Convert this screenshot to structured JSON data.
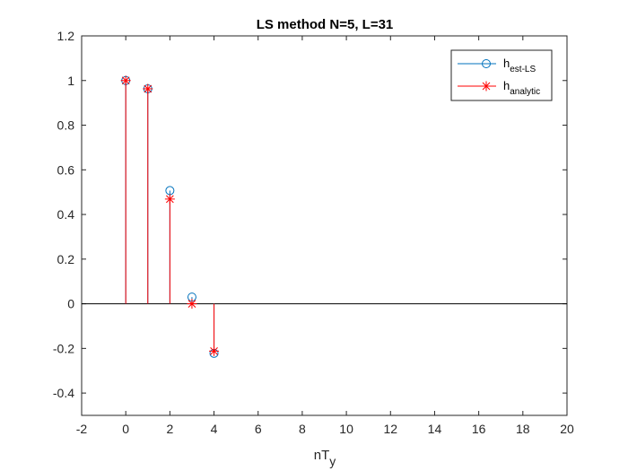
{
  "chart_data": {
    "type": "stem",
    "title": "LS method N=5, L=31",
    "xlabel_main": "nT",
    "xlabel_sub": "y",
    "ylabel": "",
    "xlim": [
      -2,
      20
    ],
    "ylim": [
      -0.5,
      1.2
    ],
    "xticks": [
      -2,
      0,
      2,
      4,
      6,
      8,
      10,
      12,
      14,
      16,
      18,
      20
    ],
    "xtick_labels": [
      "-2",
      "0",
      "2",
      "4",
      "6",
      "8",
      "10",
      "12",
      "14",
      "16",
      "18",
      "20"
    ],
    "yticks": [
      -0.4,
      -0.2,
      0,
      0.2,
      0.4,
      0.6,
      0.8,
      1,
      1.2
    ],
    "ytick_labels": [
      "-0.4",
      "-0.2",
      "0",
      "0.2",
      "0.4",
      "0.6",
      "0.8",
      "1",
      "1.2"
    ],
    "grid": false,
    "legend_position": "top-right",
    "series": [
      {
        "legend_main": "h",
        "legend_sub": "est-LS",
        "marker": "circle",
        "color": "#0072BD",
        "x": [
          0,
          1,
          2,
          3,
          4
        ],
        "values": [
          1.0,
          0.963,
          0.507,
          0.03,
          -0.222
        ]
      },
      {
        "legend_main": "h",
        "legend_sub": "analytic",
        "marker": "asterisk",
        "color": "#FF0000",
        "x": [
          0,
          1,
          2,
          3,
          4
        ],
        "values": [
          1.0,
          0.963,
          0.469,
          0.0,
          -0.212
        ]
      }
    ]
  }
}
